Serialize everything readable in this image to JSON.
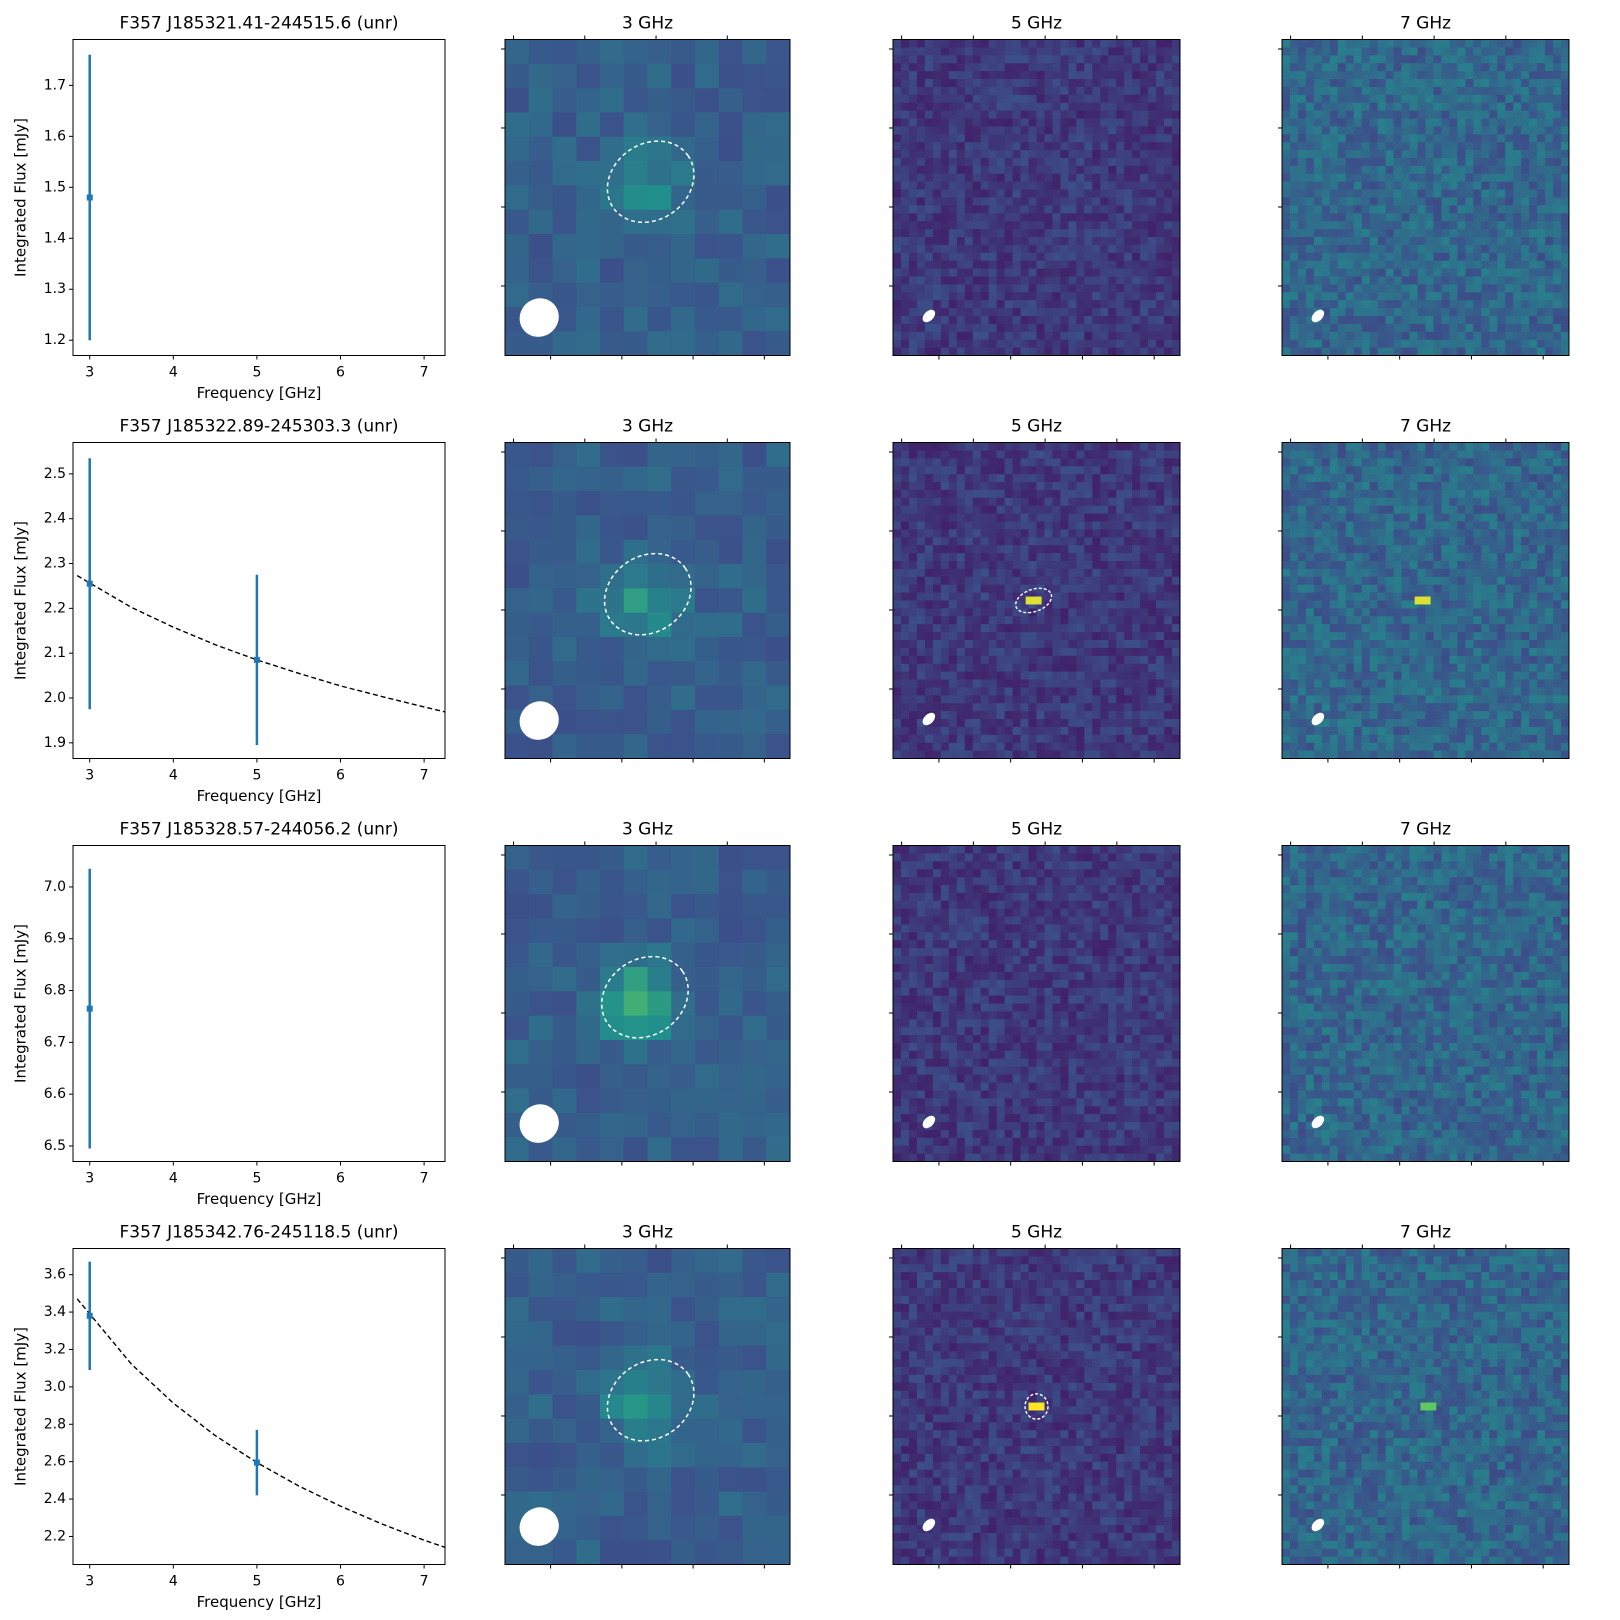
{
  "chart_data": [
    {
      "type": "errorbar",
      "title": "F357 J185321.41-244515.6 (unr)",
      "xlabel": "Frequency [GHz]",
      "ylabel": "Integrated Flux [mJy]",
      "color": "#1f77b4",
      "x": [
        3
      ],
      "values": [
        1.48
      ],
      "errors": [
        0.28
      ],
      "xlim": [
        2.8,
        7.25
      ],
      "xticks": [
        3,
        4,
        5,
        6,
        7
      ],
      "ylim": [
        1.17,
        1.79
      ],
      "yticks": [
        1.2,
        1.3,
        1.4,
        1.5,
        1.6,
        1.7
      ]
    },
    {
      "type": "image",
      "title": "3 GHz"
    },
    {
      "type": "image",
      "title": "5 GHz"
    },
    {
      "type": "image",
      "title": "7 GHz"
    },
    {
      "type": "errorbar",
      "title": "F357 J185322.89-245303.3 (unr)",
      "xlabel": "Frequency [GHz]",
      "ylabel": "Integrated Flux [mJy]",
      "color": "#1f77b4",
      "x": [
        3,
        5
      ],
      "values": [
        2.255,
        2.085
      ],
      "errors": [
        0.28,
        0.19
      ],
      "fit": {
        "x": [
          2.85,
          3.5,
          4,
          4.5,
          5,
          5.5,
          6,
          6.5,
          7,
          7.25
        ],
        "values": [
          2.273,
          2.202,
          2.158,
          2.119,
          2.085,
          2.055,
          2.027,
          2.003,
          1.98,
          1.969
        ]
      },
      "xlim": [
        2.8,
        7.25
      ],
      "xticks": [
        3,
        4,
        5,
        6,
        7
      ],
      "ylim": [
        1.865,
        2.57
      ],
      "yticks": [
        1.9,
        {
          "value": 2,
          "label": "2.0"
        },
        2.1,
        2.2,
        2.3,
        2.4,
        2.5
      ]
    },
    {
      "type": "image",
      "title": "3 GHz"
    },
    {
      "type": "image",
      "title": "5 GHz"
    },
    {
      "type": "image",
      "title": "7 GHz"
    },
    {
      "type": "errorbar",
      "title": "F357 J185328.57-244056.2 (unr)",
      "xlabel": "Frequency [GHz]",
      "ylabel": "Integrated Flux [mJy]",
      "color": "#1f77b4",
      "x": [
        3
      ],
      "values": [
        6.765
      ],
      "errors": [
        0.27
      ],
      "xlim": [
        2.8,
        7.25
      ],
      "xticks": [
        3,
        4,
        5,
        6,
        7
      ],
      "ylim": [
        6.47,
        7.08
      ],
      "yticks": [
        6.5,
        6.6,
        6.7,
        6.8,
        6.9,
        {
          "value": 7,
          "label": "7.0"
        }
      ]
    },
    {
      "type": "image",
      "title": "3 GHz"
    },
    {
      "type": "image",
      "title": "5 GHz"
    },
    {
      "type": "image",
      "title": "7 GHz"
    },
    {
      "type": "errorbar",
      "title": "F357 J185342.76-245118.5 (unr)",
      "xlabel": "Frequency [GHz]",
      "ylabel": "Integrated Flux [mJy]",
      "color": "#1f77b4",
      "x": [
        3,
        5
      ],
      "values": [
        3.38,
        2.595
      ],
      "errors": [
        0.29,
        0.175
      ],
      "fit": {
        "x": [
          2.85,
          3.5,
          4,
          4.5,
          5,
          5.5,
          6,
          6.5,
          7,
          7.25
        ],
        "values": [
          3.471,
          3.121,
          2.913,
          2.74,
          2.595,
          2.47,
          2.362,
          2.266,
          2.18,
          2.142
        ]
      },
      "xlim": [
        2.8,
        7.25
      ],
      "xticks": [
        3,
        4,
        5,
        6,
        7
      ],
      "ylim": [
        2.05,
        3.74
      ],
      "yticks": [
        2.2,
        2.4,
        2.6,
        2.8,
        {
          "value": 3,
          "label": "3.0"
        },
        3.2,
        3.4,
        3.6
      ]
    },
    {
      "type": "image",
      "title": "3 GHz"
    },
    {
      "type": "image",
      "title": "5 GHz"
    },
    {
      "type": "image",
      "title": "7 GHz"
    }
  ]
}
